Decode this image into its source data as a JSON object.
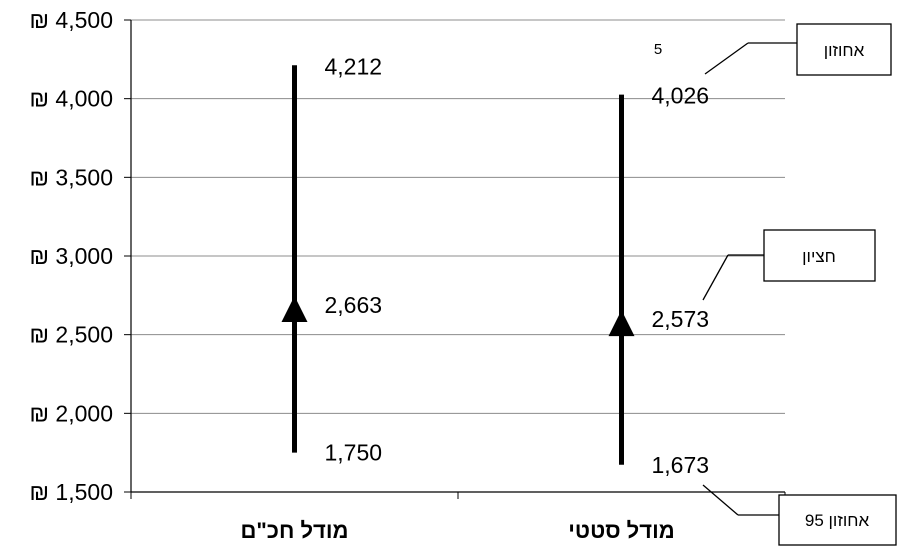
{
  "chart_data": {
    "type": "range",
    "currency": "₪",
    "ylim": [
      1500,
      4500
    ],
    "yticks": [
      1500,
      2000,
      2500,
      3000,
      3500,
      4000,
      4500
    ],
    "ytick_labels": [
      "₪ 1,500",
      "₪ 2,000",
      "₪ 2,500",
      "₪ 3,000",
      "₪ 3,500",
      "₪ 4,000",
      "₪ 4,500"
    ],
    "grid": true,
    "categories": [
      "מודל חכ\"ם",
      "מודל סטטי"
    ],
    "ranges": [
      {
        "low": 1750,
        "mid": 2663,
        "high": 4212,
        "low_label": "1,750",
        "mid_label": "2,663",
        "high_label": "4,212"
      },
      {
        "low": 1673,
        "mid": 2573,
        "high": 4026,
        "low_label": "1,673",
        "mid_label": "2,573",
        "high_label": "4,026"
      }
    ],
    "callouts": {
      "high": "אחוזון",
      "high_note": "5",
      "mid": "חציון",
      "low": "95 אחוזון"
    }
  }
}
